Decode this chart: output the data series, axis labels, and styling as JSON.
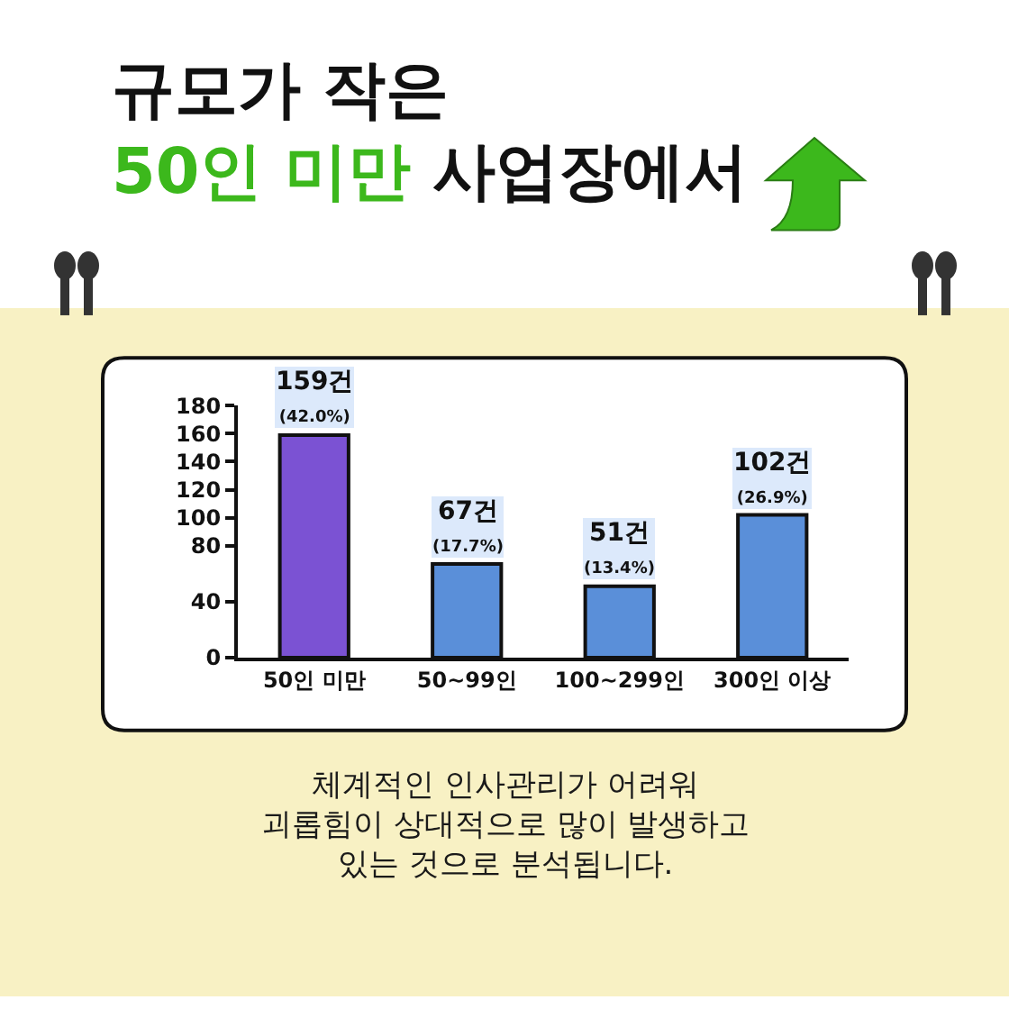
{
  "chart_data": {
    "type": "bar",
    "title": "규모가 작은\n50인 미만 사업장에서",
    "categories": [
      "50인 미만",
      "50~99인",
      "100~299인",
      "300인 이상"
    ],
    "values": [
      159,
      67,
      51,
      102
    ],
    "colors": [
      "#7b52d3",
      "#5a8fd9",
      "#5a8fd9",
      "#5a8fd9"
    ],
    "value_labels": [
      "159건\n(42.0%)",
      "67건\n(17.7%)",
      "51건\n(13.4%)",
      "102건\n(26.9%)"
    ],
    "ylim": [
      0,
      180
    ],
    "yticks": [
      0,
      40,
      80,
      100,
      120,
      140,
      160,
      180
    ],
    "grid": false,
    "annotations": [
      "체계적인 인사관리가 어려워\n괴롭힘이 상대적으로 많이 발생하고\n있는 것으로 분석됩니다."
    ]
  }
}
